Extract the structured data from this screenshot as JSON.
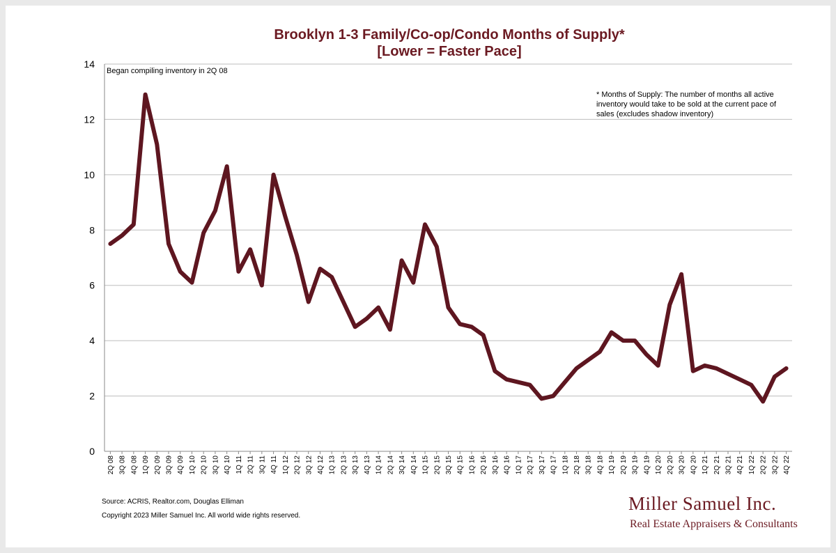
{
  "chart_data": {
    "type": "line",
    "title": "Brooklyn 1-3 Family/Co-op/Condo Months of Supply*",
    "subtitle": "[Lower = Faster Pace]",
    "categories": [
      "2Q 08",
      "3Q 08",
      "4Q 08",
      "1Q 09",
      "2Q 09",
      "3Q 09",
      "4Q 09",
      "1Q 10",
      "2Q 10",
      "3Q 10",
      "4Q 10",
      "1Q 11",
      "2Q 11",
      "3Q 11",
      "4Q 11",
      "1Q 12",
      "2Q 12",
      "3Q 12",
      "4Q 12",
      "1Q 13",
      "2Q 13",
      "3Q 13",
      "4Q 13",
      "1Q 14",
      "2Q 14",
      "3Q 14",
      "4Q 14",
      "1Q 15",
      "2Q 15",
      "3Q 15",
      "4Q 15",
      "1Q 16",
      "2Q 16",
      "3Q 16",
      "4Q 16",
      "1Q 17",
      "2Q 17",
      "3Q 17",
      "4Q 17",
      "1Q 18",
      "2Q 18",
      "3Q 18",
      "4Q 18",
      "1Q 19",
      "2Q 19",
      "3Q 19",
      "4Q 19",
      "1Q 20",
      "2Q 20",
      "3Q 20",
      "4Q 20",
      "1Q 21",
      "2Q 21",
      "3Q 21",
      "4Q 21",
      "1Q 22",
      "2Q 22",
      "3Q 22",
      "4Q 22"
    ],
    "series": [
      {
        "values": [
          7.5,
          7.8,
          8.2,
          12.9,
          11.1,
          7.5,
          6.5,
          6.1,
          7.9,
          8.7,
          10.3,
          6.5,
          7.3,
          6.0,
          10.0,
          8.5,
          7.1,
          5.4,
          6.6,
          6.3,
          5.4,
          4.5,
          4.8,
          5.2,
          4.4,
          6.9,
          6.1,
          8.2,
          7.4,
          5.2,
          4.6,
          4.5,
          4.2,
          2.9,
          2.6,
          2.5,
          2.4,
          1.9,
          2.0,
          2.5,
          3.0,
          3.3,
          3.6,
          4.3,
          4.0,
          4.0,
          3.5,
          3.1,
          5.3,
          6.4,
          2.9,
          3.1,
          3.0,
          2.8,
          2.6,
          2.4,
          1.8,
          2.7,
          3.0
        ]
      }
    ],
    "ylim": [
      0,
      14
    ],
    "yticks": [
      0,
      2,
      4,
      6,
      8,
      10,
      12,
      14
    ],
    "grid": true,
    "legend": "none",
    "line_color": "#5e1620",
    "annotations": {
      "inventory": "Began compiling inventory in 2Q 08",
      "footnote_1": "* Months of Supply: The number of months all active",
      "footnote_2": "inventory would take to be sold at the current pace of",
      "footnote_3": "sales (excludes shadow inventory)"
    }
  },
  "source": "Source: ACRIS, Realtor.com, Douglas Elliman",
  "copyright": "Copyright 2023 Miller Samuel Inc.  All world wide rights reserved.",
  "brand": {
    "name": "Miller Samuel Inc.",
    "tagline": "Real Estate Appraisers & Consultants",
    "color": "#6b1a22"
  }
}
